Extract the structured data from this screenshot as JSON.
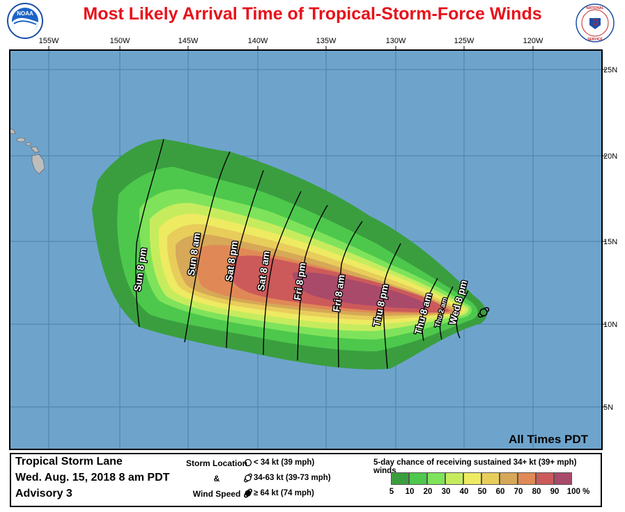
{
  "title": "Most Likely Arrival Time of Tropical-Storm-Force Winds",
  "logos": {
    "left": "NOAA",
    "right": "NATIONAL WEATHER SERVICE"
  },
  "colors": {
    "ocean": "#6ea4cc",
    "land": "#bdbdbd",
    "title": "#e8101a",
    "probability_scale": [
      "#3a9e3f",
      "#4dc84c",
      "#7ee35b",
      "#c6ec5e",
      "#eeea62",
      "#e8cd5b",
      "#d6a857",
      "#e08956",
      "#cc5a5a",
      "#a94a6a",
      "#a64fb5"
    ]
  },
  "map": {
    "lon_labels": [
      "155W",
      "150W",
      "145W",
      "140W",
      "135W",
      "130W",
      "125W",
      "120W"
    ],
    "lat_labels": [
      "25N",
      "20N",
      "15N",
      "10N",
      "5N"
    ],
    "note": "All Times PDT",
    "isochrones": [
      {
        "label": "Wed 8 pm"
      },
      {
        "label": "Thu 2 am"
      },
      {
        "label": "Thu 8 am"
      },
      {
        "label": "Thu 8 pm"
      },
      {
        "label": "Fri 8 am"
      },
      {
        "label": "Fri 8 pm"
      },
      {
        "label": "Sat 8 am"
      },
      {
        "label": "Sat 8 pm"
      },
      {
        "label": "Sun 8 am"
      },
      {
        "label": "Sun 8 pm"
      }
    ]
  },
  "storm": {
    "name": "Tropical Storm Lane",
    "datetime": "Wed. Aug. 15, 2018  8 am PDT",
    "advisory": "Advisory 3"
  },
  "legend": {
    "location_label_1": "Storm Location",
    "location_label_2": "&",
    "location_label_3": "Wind Speed",
    "items": [
      "< 34 kt (39 mph)",
      "34-63 kt (39-73 mph)",
      "≥ 64 kt (74 mph)"
    ],
    "probability_title": "5-day chance of receiving sustained 34+ kt (39+ mph) winds",
    "probability_labels": [
      "5",
      "10",
      "20",
      "30",
      "40",
      "50",
      "60",
      "70",
      "80",
      "90",
      "100 %"
    ]
  }
}
